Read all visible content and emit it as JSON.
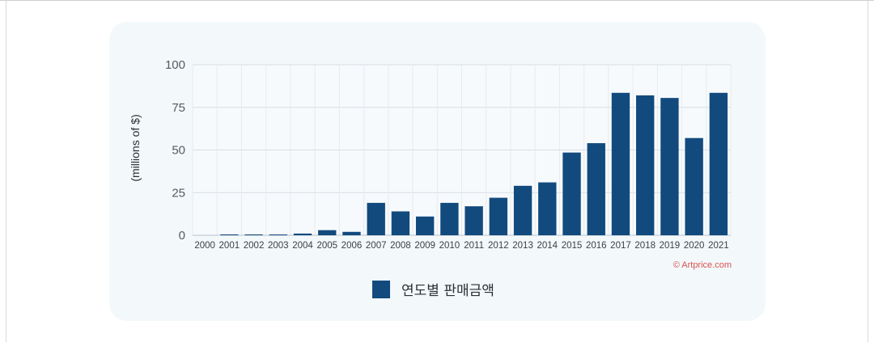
{
  "colors": {
    "bar": "#124a7e",
    "grid": "#d7dde3",
    "credit": "#d9534f"
  },
  "chart_data": {
    "type": "bar",
    "categories": [
      "2000",
      "2001",
      "2002",
      "2003",
      "2004",
      "2005",
      "2006",
      "2007",
      "2008",
      "2009",
      "2010",
      "2011",
      "2012",
      "2013",
      "2014",
      "2015",
      "2016",
      "2017",
      "2018",
      "2019",
      "2020",
      "2021"
    ],
    "series": [
      {
        "name": "연도별 판매금액",
        "values": [
          0,
          0.5,
          0.5,
          0.2,
          1,
          3,
          2,
          19,
          14,
          11,
          19,
          17,
          22,
          29,
          31,
          48.5,
          54,
          83.5,
          82,
          80.5,
          57,
          83.5
        ]
      }
    ],
    "ylabel": "(millions of $)",
    "xlabel": "",
    "ylim": [
      0,
      100
    ],
    "yticks": [
      "0",
      "25",
      "50",
      "75",
      "100"
    ],
    "grid": true,
    "legend_position": "bottom-center",
    "credit": "© Artprice.com"
  }
}
